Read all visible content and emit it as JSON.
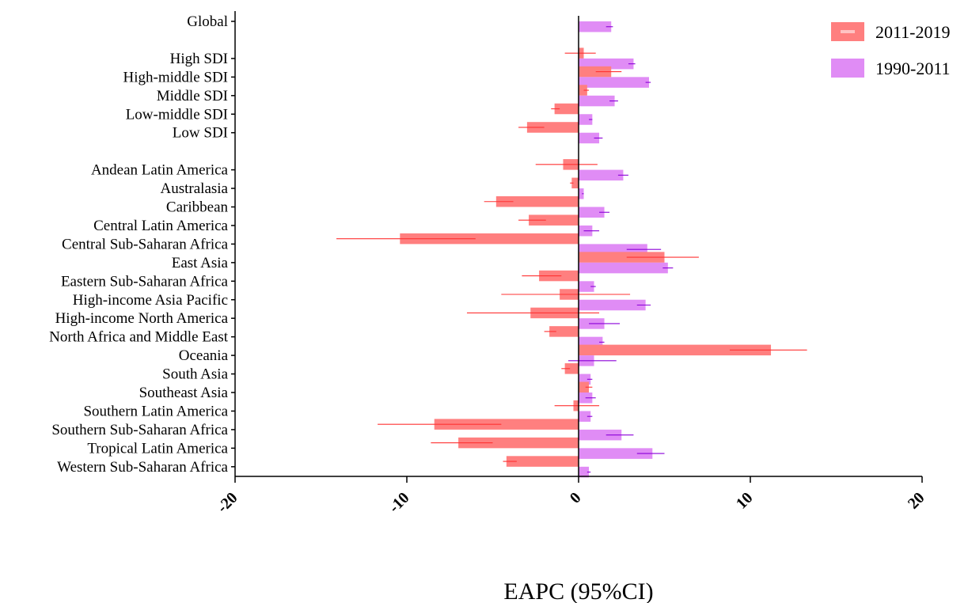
{
  "chart_data": {
    "type": "bar",
    "orientation": "horizontal",
    "xlabel": "EAPC (95%CI)",
    "xlim": [
      -20,
      20
    ],
    "xticks": [
      -20,
      -10,
      0,
      10,
      20
    ],
    "legend_position": "top-right",
    "legend": [
      {
        "name": "2011-2019",
        "color": "#ff7f7f"
      },
      {
        "name": "1990-2011",
        "color": "#e08cf5"
      }
    ],
    "errorbar_colors": {
      "2011-2019": "#ff3333",
      "1990-2011": "#8b00d9"
    },
    "categories": [
      "Global",
      "High SDI",
      "High-middle SDI",
      "Middle SDI",
      "Low-middle SDI",
      "Low SDI",
      "Andean Latin America",
      "Australasia",
      "Caribbean",
      "Central Latin America",
      "Central Sub-Saharan Africa",
      "East Asia",
      "Eastern Sub-Saharan Africa",
      "High-income Asia Pacific",
      "High-income North America",
      "North Africa and Middle East",
      "Oceania",
      "South Asia",
      "Southeast Asia",
      "Southern Latin America",
      "Southern Sub-Saharan Africa",
      "Tropical Latin America",
      "Western Sub-Saharan Africa"
    ],
    "gap_after": [
      "Global",
      "Low SDI"
    ],
    "series": [
      {
        "name": "2011-2019",
        "values": [
          0.0,
          0.3,
          1.9,
          0.5,
          -1.4,
          -3.0,
          -0.9,
          -0.4,
          -4.8,
          -2.9,
          -10.4,
          5.0,
          -2.3,
          -1.1,
          -2.8,
          -1.7,
          11.2,
          -0.8,
          0.6,
          -0.3,
          -8.4,
          -7.0,
          -4.2
        ],
        "ci_low": [
          0.0,
          -0.8,
          1.0,
          0.3,
          -1.6,
          -3.5,
          -2.5,
          -0.5,
          -5.5,
          -3.5,
          -14.1,
          2.8,
          -3.3,
          -4.5,
          -6.5,
          -2.0,
          8.8,
          -1.0,
          0.4,
          -1.4,
          -11.7,
          -8.6,
          -4.4
        ],
        "ci_high": [
          0.0,
          1.0,
          2.5,
          0.6,
          -1.1,
          -2.0,
          1.1,
          -0.3,
          -3.8,
          -1.9,
          -6.0,
          7.0,
          -1.0,
          3.0,
          1.2,
          -1.3,
          13.3,
          -0.5,
          0.8,
          1.2,
          -4.5,
          -5.0,
          -3.6
        ]
      },
      {
        "name": "1990-2011",
        "values": [
          1.9,
          3.2,
          4.1,
          2.1,
          0.8,
          1.2,
          2.6,
          0.3,
          1.5,
          0.8,
          4.0,
          5.2,
          0.9,
          3.9,
          1.5,
          1.4,
          0.9,
          0.7,
          0.8,
          0.7,
          2.5,
          4.3,
          0.6
        ],
        "ci_low": [
          1.6,
          2.9,
          3.9,
          1.8,
          0.6,
          0.9,
          2.3,
          0.2,
          1.2,
          0.3,
          2.8,
          4.9,
          0.7,
          3.4,
          0.6,
          1.2,
          -0.6,
          0.5,
          0.4,
          0.5,
          1.6,
          3.4,
          0.5
        ],
        "ci_high": [
          2.0,
          3.3,
          4.2,
          2.3,
          0.8,
          1.4,
          2.9,
          0.3,
          1.8,
          1.2,
          4.8,
          5.5,
          1.0,
          4.2,
          2.4,
          1.5,
          2.2,
          0.8,
          1.0,
          0.8,
          3.2,
          5.0,
          0.7
        ]
      }
    ]
  }
}
